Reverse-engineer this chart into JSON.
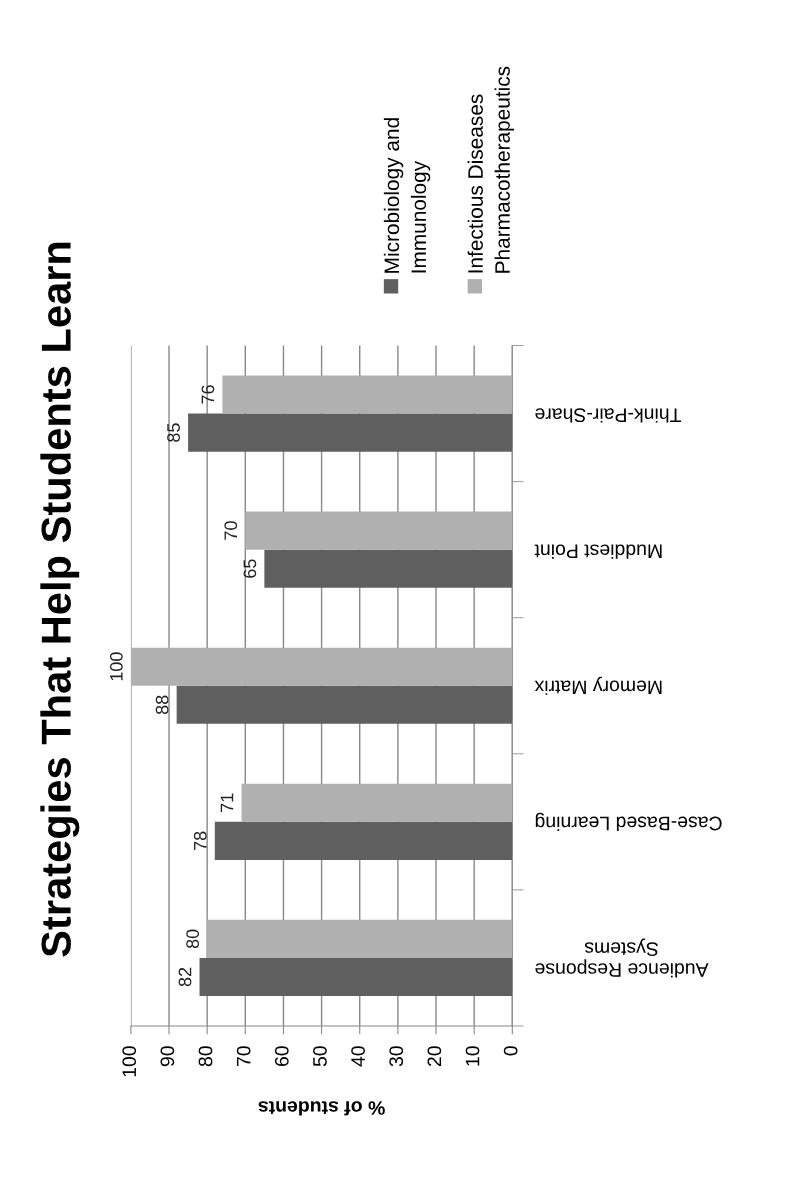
{
  "chart_data": {
    "type": "bar",
    "orientation": "horizontal",
    "title": "Strategies That Help Students Learn",
    "xlabel": "% of students",
    "categories": [
      "Think-Pair-Share",
      "Muddiest Point",
      "Memory Matrix",
      "Case-Based Learning",
      "Audience Response\nSystems"
    ],
    "series": [
      {
        "name": "Microbiology and\nImmunology",
        "color": "#5f5f5f",
        "values": [
          85,
          65,
          88,
          78,
          82
        ]
      },
      {
        "name": "Infectious Diseases\nPharmacotherapeutics",
        "color": "#b0b0b0",
        "values": [
          76,
          70,
          100,
          71,
          80
        ]
      }
    ],
    "xlim": [
      100,
      0
    ],
    "xticks": [
      100,
      90,
      80,
      70,
      60,
      50,
      40,
      30,
      20,
      10,
      0
    ],
    "grid": "x",
    "legend": "top",
    "data_labels": true
  }
}
